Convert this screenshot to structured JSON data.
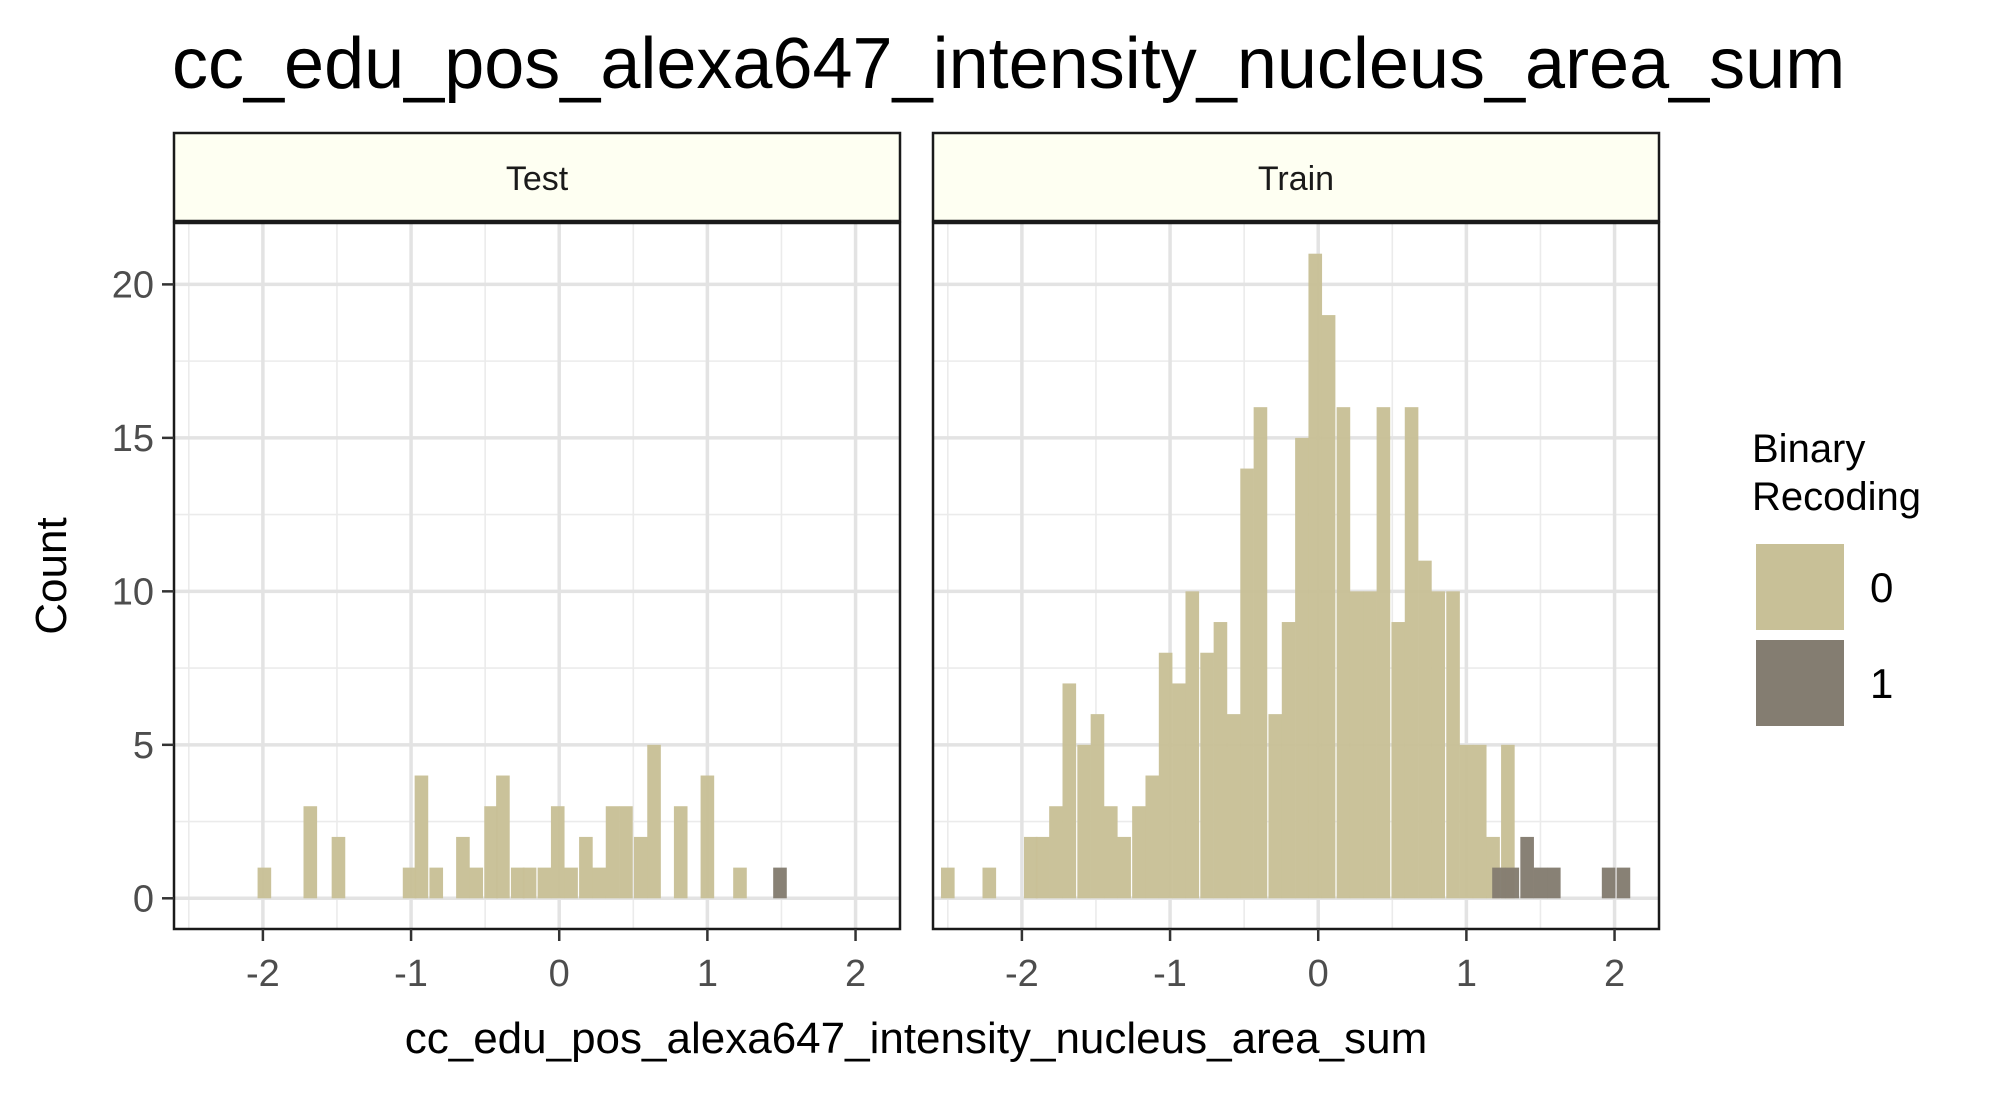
{
  "chart_data": {
    "type": "bar",
    "title": "cc_edu_pos_alexa647_intensity_nucleus_area_sum",
    "xlabel": "cc_edu_pos_alexa647_intensity_nucleus_area_sum",
    "ylabel": "Count",
    "xlim": [
      -2.6,
      2.3
    ],
    "ylim": [
      -1,
      22
    ],
    "x_ticks": [
      -2,
      -1,
      0,
      1,
      2
    ],
    "y_ticks": [
      0,
      5,
      10,
      15,
      20
    ],
    "x_tick_labels": [
      "-2",
      "-1",
      "0",
      "1",
      "2"
    ],
    "y_tick_labels": [
      "0",
      "5",
      "10",
      "15",
      "20"
    ],
    "grid": true,
    "bin_width": 0.0918,
    "legend": {
      "title_lines": [
        "Binary",
        "Recoding"
      ],
      "position": "right",
      "items": [
        {
          "label": "0",
          "color": "#c8c097"
        },
        {
          "label": "1",
          "color": "#847d71"
        }
      ]
    },
    "facets": [
      {
        "label": "Test",
        "bars": [
          {
            "x": -1.99,
            "count": 1,
            "group": "0"
          },
          {
            "x": -1.68,
            "count": 3,
            "group": "0"
          },
          {
            "x": -1.49,
            "count": 2,
            "group": "0"
          },
          {
            "x": -1.01,
            "count": 1,
            "group": "0"
          },
          {
            "x": -0.93,
            "count": 4,
            "group": "0"
          },
          {
            "x": -0.83,
            "count": 1,
            "group": "0"
          },
          {
            "x": -0.65,
            "count": 2,
            "group": "0"
          },
          {
            "x": -0.56,
            "count": 1,
            "group": "0"
          },
          {
            "x": -0.46,
            "count": 3,
            "group": "0"
          },
          {
            "x": -0.38,
            "count": 4,
            "group": "0"
          },
          {
            "x": -0.28,
            "count": 1,
            "group": "0"
          },
          {
            "x": -0.2,
            "count": 1,
            "group": "0"
          },
          {
            "x": -0.1,
            "count": 1,
            "group": "0"
          },
          {
            "x": -0.01,
            "count": 3,
            "group": "0"
          },
          {
            "x": 0.08,
            "count": 1,
            "group": "0"
          },
          {
            "x": 0.18,
            "count": 2,
            "group": "0"
          },
          {
            "x": 0.27,
            "count": 1,
            "group": "0"
          },
          {
            "x": 0.36,
            "count": 3,
            "group": "0"
          },
          {
            "x": 0.45,
            "count": 3,
            "group": "0"
          },
          {
            "x": 0.55,
            "count": 2,
            "group": "0"
          },
          {
            "x": 0.64,
            "count": 5,
            "group": "0"
          },
          {
            "x": 0.82,
            "count": 3,
            "group": "0"
          },
          {
            "x": 1.0,
            "count": 4,
            "group": "0"
          },
          {
            "x": 1.22,
            "count": 1,
            "group": "0"
          },
          {
            "x": 1.49,
            "count": 1,
            "group": "1"
          }
        ]
      },
      {
        "label": "Train",
        "bars": [
          {
            "x": -2.5,
            "count": 1,
            "group": "0"
          },
          {
            "x": -2.22,
            "count": 1,
            "group": "0"
          },
          {
            "x": -1.94,
            "count": 2,
            "group": "0"
          },
          {
            "x": -1.86,
            "count": 2,
            "group": "0"
          },
          {
            "x": -1.77,
            "count": 3,
            "group": "0"
          },
          {
            "x": -1.68,
            "count": 7,
            "group": "0"
          },
          {
            "x": -1.58,
            "count": 5,
            "group": "0"
          },
          {
            "x": -1.49,
            "count": 6,
            "group": "0"
          },
          {
            "x": -1.4,
            "count": 3,
            "group": "0"
          },
          {
            "x": -1.31,
            "count": 2,
            "group": "0"
          },
          {
            "x": -1.21,
            "count": 3,
            "group": "0"
          },
          {
            "x": -1.12,
            "count": 4,
            "group": "0"
          },
          {
            "x": -1.03,
            "count": 8,
            "group": "0"
          },
          {
            "x": -0.94,
            "count": 7,
            "group": "0"
          },
          {
            "x": -0.85,
            "count": 10,
            "group": "0"
          },
          {
            "x": -0.75,
            "count": 8,
            "group": "0"
          },
          {
            "x": -0.66,
            "count": 9,
            "group": "0"
          },
          {
            "x": -0.57,
            "count": 6,
            "group": "0"
          },
          {
            "x": -0.48,
            "count": 14,
            "group": "0"
          },
          {
            "x": -0.39,
            "count": 16,
            "group": "0"
          },
          {
            "x": -0.29,
            "count": 6,
            "group": "0"
          },
          {
            "x": -0.2,
            "count": 9,
            "group": "0"
          },
          {
            "x": -0.11,
            "count": 15,
            "group": "0"
          },
          {
            "x": -0.02,
            "count": 21,
            "group": "0"
          },
          {
            "x": 0.07,
            "count": 19,
            "group": "0"
          },
          {
            "x": 0.17,
            "count": 16,
            "group": "0"
          },
          {
            "x": 0.26,
            "count": 10,
            "group": "0"
          },
          {
            "x": 0.35,
            "count": 10,
            "group": "0"
          },
          {
            "x": 0.44,
            "count": 16,
            "group": "0"
          },
          {
            "x": 0.54,
            "count": 9,
            "group": "0"
          },
          {
            "x": 0.63,
            "count": 16,
            "group": "0"
          },
          {
            "x": 0.72,
            "count": 11,
            "group": "0"
          },
          {
            "x": 0.81,
            "count": 10,
            "group": "0"
          },
          {
            "x": 0.91,
            "count": 10,
            "group": "0"
          },
          {
            "x": 1.0,
            "count": 5,
            "group": "0"
          },
          {
            "x": 1.09,
            "count": 5,
            "group": "0"
          },
          {
            "x": 1.18,
            "count": 2,
            "group": "0"
          },
          {
            "x": 1.28,
            "count": 5,
            "group": "0"
          },
          {
            "x": 1.22,
            "count": 1,
            "group": "1"
          },
          {
            "x": 1.31,
            "count": 1,
            "group": "1"
          },
          {
            "x": 1.41,
            "count": 2,
            "group": "1"
          },
          {
            "x": 1.5,
            "count": 1,
            "group": "1"
          },
          {
            "x": 1.59,
            "count": 1,
            "group": "1"
          },
          {
            "x": 1.96,
            "count": 1,
            "group": "1"
          },
          {
            "x": 2.06,
            "count": 1,
            "group": "1"
          }
        ]
      }
    ]
  }
}
